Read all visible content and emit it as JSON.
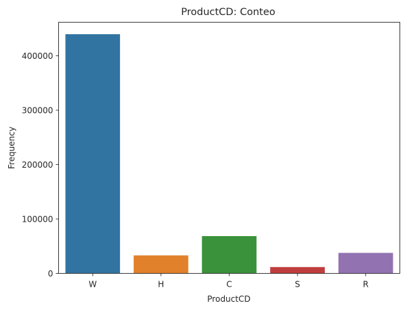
{
  "chart_data": {
    "type": "bar",
    "title": "ProductCD: Conteo",
    "xlabel": "ProductCD",
    "ylabel": "Frequency",
    "categories": [
      "W",
      "H",
      "C",
      "S",
      "R"
    ],
    "values": [
      439670,
      33024,
      68519,
      11628,
      37699
    ],
    "colors": [
      "#3274a1",
      "#e1812c",
      "#3a923a",
      "#c03d3e",
      "#9372b2"
    ],
    "ylim": [
      0,
      461654
    ],
    "yticks": [
      0,
      100000,
      200000,
      300000,
      400000
    ],
    "grid": false,
    "legend": "none"
  }
}
